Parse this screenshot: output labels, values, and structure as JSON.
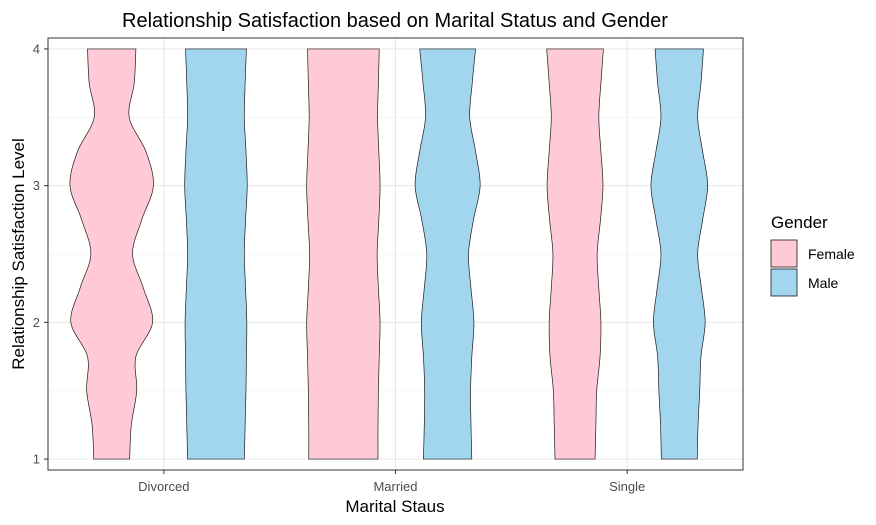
{
  "chart_data": {
    "type": "violin",
    "title": "Relationship Satisfaction based on Marital Status and Gender",
    "xlabel": "Marital Staus",
    "ylabel": "Relationship Satisfaction Level",
    "categories": [
      "Divorced",
      "Married",
      "Single"
    ],
    "ylim": [
      0.92,
      4.08
    ],
    "yticks": [
      1,
      2,
      3,
      4
    ],
    "grid": true,
    "legend": {
      "title": "Gender",
      "position": "right",
      "items": [
        "Female",
        "Male"
      ]
    },
    "series": [
      {
        "name": "Female",
        "color": "#FFC9D6",
        "density_y": [
          1.0,
          1.25,
          1.5,
          1.75,
          2.0,
          2.25,
          2.5,
          2.75,
          3.0,
          3.25,
          3.5,
          3.75,
          4.0
        ],
        "half_widths": {
          "Divorced": [
            0.43,
            0.47,
            0.6,
            0.58,
            0.98,
            0.76,
            0.5,
            0.72,
            1.0,
            0.82,
            0.42,
            0.54,
            0.58
          ],
          "Married": [
            0.83,
            0.83,
            0.84,
            0.86,
            0.88,
            0.84,
            0.81,
            0.85,
            0.88,
            0.85,
            0.82,
            0.84,
            0.86
          ],
          "Single": [
            0.48,
            0.5,
            0.52,
            0.6,
            0.62,
            0.57,
            0.53,
            0.61,
            0.67,
            0.62,
            0.57,
            0.62,
            0.68
          ]
        }
      },
      {
        "name": "Male",
        "color": "#A1D6EE",
        "density_y": [
          1.0,
          1.25,
          1.5,
          1.75,
          2.0,
          2.25,
          2.5,
          2.75,
          3.0,
          3.25,
          3.5,
          3.75,
          4.0
        ],
        "half_widths": {
          "Divorced": [
            0.68,
            0.7,
            0.72,
            0.73,
            0.74,
            0.71,
            0.68,
            0.71,
            0.75,
            0.72,
            0.68,
            0.7,
            0.73
          ],
          "Married": [
            0.58,
            0.56,
            0.55,
            0.58,
            0.63,
            0.56,
            0.5,
            0.62,
            0.78,
            0.67,
            0.53,
            0.59,
            0.67
          ],
          "Single": [
            0.43,
            0.45,
            0.49,
            0.52,
            0.62,
            0.53,
            0.44,
            0.56,
            0.68,
            0.56,
            0.44,
            0.52,
            0.58
          ]
        }
      }
    ]
  }
}
